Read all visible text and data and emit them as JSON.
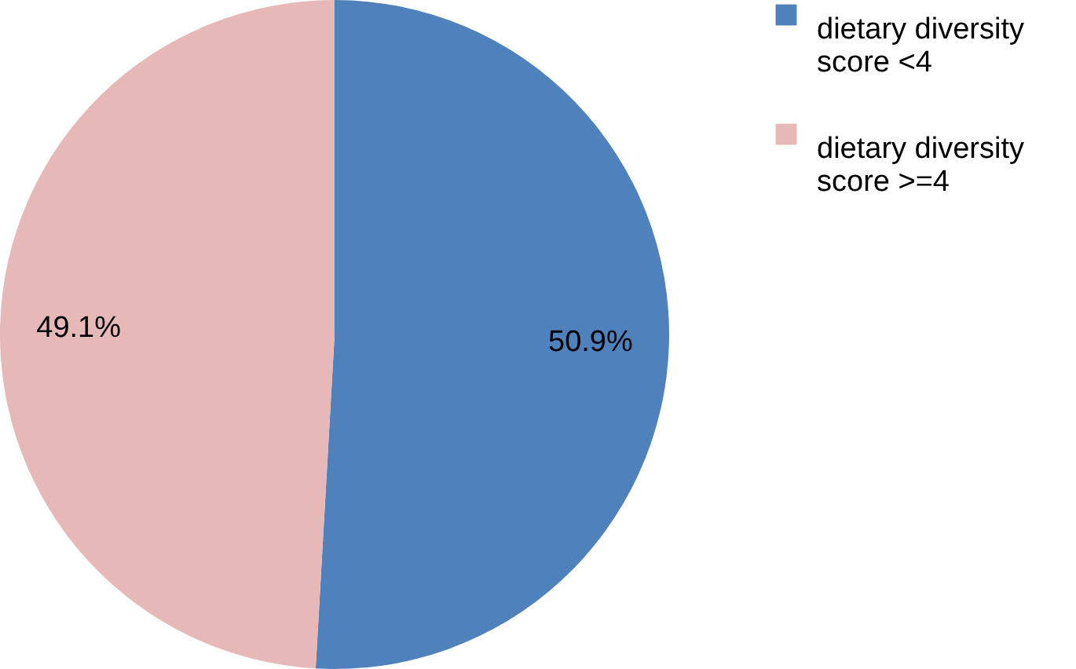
{
  "chart_data": {
    "type": "pie",
    "categories": [
      "dietary diversity score <4",
      "dietary diversity score >=4"
    ],
    "values": [
      50.9,
      49.1
    ],
    "colors": [
      "#4f81bd",
      "#e6b9b8"
    ],
    "value_labels": [
      "50.9%",
      "49.1%"
    ],
    "legend": "right"
  }
}
